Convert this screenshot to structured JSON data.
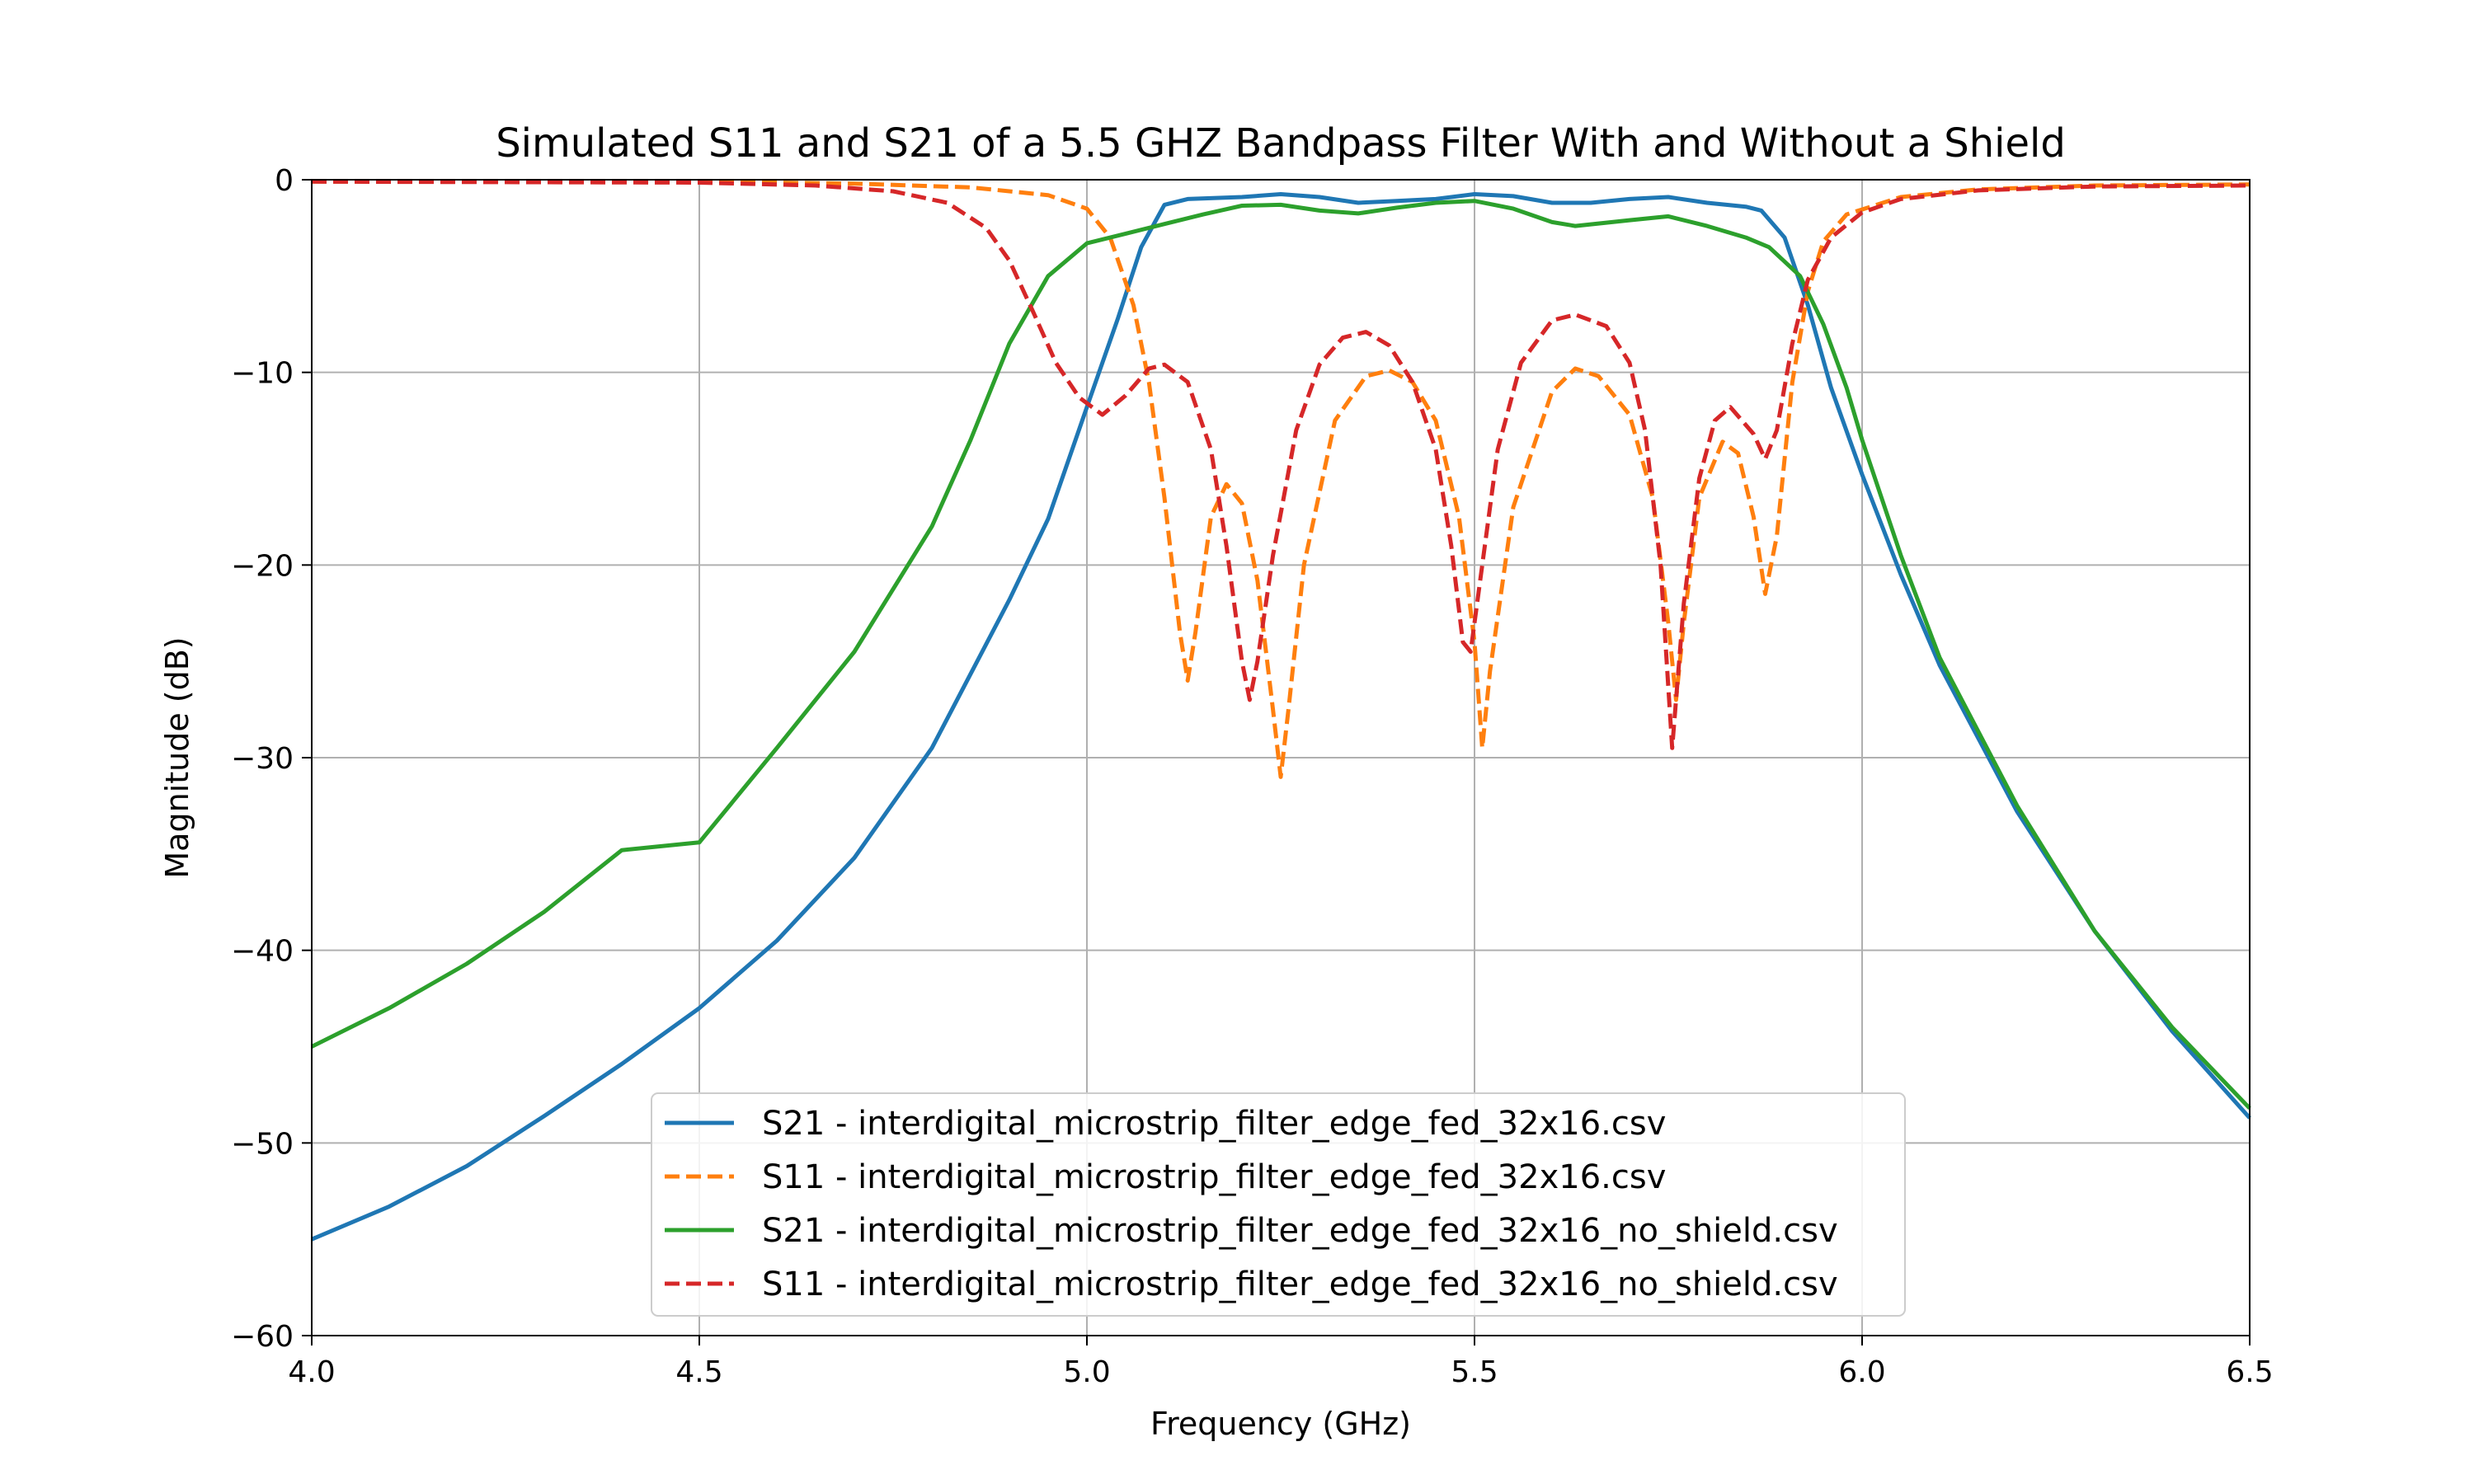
{
  "chart_data": {
    "type": "line",
    "title": "Simulated S11 and S21 of a 5.5 GHZ Bandpass Filter With and Without a Shield",
    "xlabel": "Frequency (GHz)",
    "ylabel": "Magnitude (dB)",
    "xlim": [
      4.0,
      6.5
    ],
    "ylim": [
      -60,
      0
    ],
    "xticks": [
      4.0,
      4.5,
      5.0,
      5.5,
      6.0,
      6.5
    ],
    "xtick_labels": [
      "4.0",
      "4.5",
      "5.0",
      "5.5",
      "6.0",
      "6.5"
    ],
    "yticks": [
      0,
      -10,
      -20,
      -30,
      -40,
      -50,
      -60
    ],
    "ytick_labels": [
      "0",
      "−10",
      "−20",
      "−30",
      "−40",
      "−50",
      "−60"
    ],
    "grid": true,
    "legend_position": "lower-center",
    "series": [
      {
        "name": "S21 - interdigital_microstrip_filter_edge_fed_32x16.csv",
        "color": "#1f77b4",
        "dash": "solid",
        "points": [
          [
            4.0,
            -55
          ],
          [
            4.1,
            -53.3
          ],
          [
            4.2,
            -51.2
          ],
          [
            4.3,
            -48.6
          ],
          [
            4.4,
            -45.9
          ],
          [
            4.5,
            -43
          ],
          [
            4.6,
            -39.5
          ],
          [
            4.7,
            -35.2
          ],
          [
            4.8,
            -29.5
          ],
          [
            4.9,
            -21.8
          ],
          [
            4.95,
            -17.6
          ],
          [
            5.0,
            -11.8
          ],
          [
            5.04,
            -7.2
          ],
          [
            5.07,
            -3.5
          ],
          [
            5.1,
            -1.3
          ],
          [
            5.13,
            -1.0
          ],
          [
            5.2,
            -0.9
          ],
          [
            5.25,
            -0.75
          ],
          [
            5.3,
            -0.9
          ],
          [
            5.35,
            -1.2
          ],
          [
            5.4,
            -1.1
          ],
          [
            5.45,
            -1.0
          ],
          [
            5.5,
            -0.75
          ],
          [
            5.55,
            -0.85
          ],
          [
            5.6,
            -1.2
          ],
          [
            5.65,
            -1.2
          ],
          [
            5.7,
            -1.0
          ],
          [
            5.75,
            -0.9
          ],
          [
            5.8,
            -1.2
          ],
          [
            5.85,
            -1.4
          ],
          [
            5.87,
            -1.6
          ],
          [
            5.9,
            -3.0
          ],
          [
            5.93,
            -6.5
          ],
          [
            5.96,
            -10.8
          ],
          [
            6.0,
            -15.3
          ],
          [
            6.05,
            -20.5
          ],
          [
            6.1,
            -25.2
          ],
          [
            6.2,
            -32.8
          ],
          [
            6.3,
            -39.0
          ],
          [
            6.4,
            -44.2
          ],
          [
            6.5,
            -48.7
          ]
        ]
      },
      {
        "name": "S11 - interdigital_microstrip_filter_edge_fed_32x16.csv",
        "color": "#ff7f0e",
        "dash": "dashed",
        "points": [
          [
            4.0,
            -0.1
          ],
          [
            4.5,
            -0.1
          ],
          [
            4.7,
            -0.2
          ],
          [
            4.85,
            -0.4
          ],
          [
            4.95,
            -0.8
          ],
          [
            5.0,
            -1.5
          ],
          [
            5.03,
            -3.0
          ],
          [
            5.06,
            -6.5
          ],
          [
            5.08,
            -10.5
          ],
          [
            5.1,
            -16.5
          ],
          [
            5.12,
            -23.5
          ],
          [
            5.13,
            -26.0
          ],
          [
            5.14,
            -23.5
          ],
          [
            5.16,
            -17.5
          ],
          [
            5.18,
            -15.8
          ],
          [
            5.2,
            -16.8
          ],
          [
            5.22,
            -20.8
          ],
          [
            5.24,
            -27.5
          ],
          [
            5.25,
            -31.0
          ],
          [
            5.26,
            -27.5
          ],
          [
            5.28,
            -20.0
          ],
          [
            5.32,
            -12.5
          ],
          [
            5.36,
            -10.2
          ],
          [
            5.39,
            -9.9
          ],
          [
            5.42,
            -10.5
          ],
          [
            5.45,
            -12.5
          ],
          [
            5.48,
            -17.5
          ],
          [
            5.5,
            -24.0
          ],
          [
            5.51,
            -29.5
          ],
          [
            5.52,
            -25.5
          ],
          [
            5.55,
            -17.0
          ],
          [
            5.6,
            -11.0
          ],
          [
            5.63,
            -9.8
          ],
          [
            5.66,
            -10.2
          ],
          [
            5.7,
            -12.2
          ],
          [
            5.73,
            -16.5
          ],
          [
            5.75,
            -23.0
          ],
          [
            5.76,
            -27.0
          ],
          [
            5.77,
            -23.0
          ],
          [
            5.79,
            -16.5
          ],
          [
            5.82,
            -13.6
          ],
          [
            5.84,
            -14.2
          ],
          [
            5.86,
            -17.5
          ],
          [
            5.875,
            -21.5
          ],
          [
            5.89,
            -18.5
          ],
          [
            5.91,
            -10.5
          ],
          [
            5.93,
            -5.8
          ],
          [
            5.95,
            -3.2
          ],
          [
            5.98,
            -1.8
          ],
          [
            6.05,
            -0.9
          ],
          [
            6.15,
            -0.5
          ],
          [
            6.3,
            -0.3
          ],
          [
            6.5,
            -0.25
          ]
        ]
      },
      {
        "name": "S21 - interdigital_microstrip_filter_edge_fed_32x16_no_shield.csv",
        "color": "#2ca02c",
        "dash": "solid",
        "points": [
          [
            4.0,
            -45
          ],
          [
            4.1,
            -43.0
          ],
          [
            4.2,
            -40.7
          ],
          [
            4.3,
            -38.0
          ],
          [
            4.4,
            -34.8
          ],
          [
            4.5,
            -34.4
          ],
          [
            4.6,
            -29.5
          ],
          [
            4.7,
            -24.5
          ],
          [
            4.8,
            -18.0
          ],
          [
            4.85,
            -13.5
          ],
          [
            4.9,
            -8.5
          ],
          [
            4.95,
            -5.0
          ],
          [
            5.0,
            -3.3
          ],
          [
            5.05,
            -2.8
          ],
          [
            5.1,
            -2.3
          ],
          [
            5.15,
            -1.8
          ],
          [
            5.2,
            -1.35
          ],
          [
            5.25,
            -1.3
          ],
          [
            5.3,
            -1.6
          ],
          [
            5.35,
            -1.75
          ],
          [
            5.4,
            -1.45
          ],
          [
            5.45,
            -1.2
          ],
          [
            5.5,
            -1.1
          ],
          [
            5.55,
            -1.5
          ],
          [
            5.6,
            -2.2
          ],
          [
            5.63,
            -2.4
          ],
          [
            5.7,
            -2.1
          ],
          [
            5.75,
            -1.9
          ],
          [
            5.8,
            -2.4
          ],
          [
            5.85,
            -3.0
          ],
          [
            5.88,
            -3.5
          ],
          [
            5.92,
            -5.0
          ],
          [
            5.95,
            -7.5
          ],
          [
            5.98,
            -10.8
          ],
          [
            6.0,
            -13.5
          ],
          [
            6.05,
            -19.5
          ],
          [
            6.1,
            -24.8
          ],
          [
            6.2,
            -32.5
          ],
          [
            6.3,
            -39.0
          ],
          [
            6.4,
            -44.0
          ],
          [
            6.5,
            -48.2
          ]
        ]
      },
      {
        "name": "S11 - interdigital_microstrip_filter_edge_fed_32x16_no_shield.csv",
        "color": "#d62728",
        "dash": "dashed",
        "points": [
          [
            4.0,
            -0.1
          ],
          [
            4.5,
            -0.15
          ],
          [
            4.65,
            -0.3
          ],
          [
            4.75,
            -0.6
          ],
          [
            4.82,
            -1.2
          ],
          [
            4.87,
            -2.5
          ],
          [
            4.9,
            -4.2
          ],
          [
            4.93,
            -6.8
          ],
          [
            4.96,
            -9.5
          ],
          [
            4.99,
            -11.3
          ],
          [
            5.02,
            -12.2
          ],
          [
            5.05,
            -11.2
          ],
          [
            5.08,
            -9.8
          ],
          [
            5.1,
            -9.6
          ],
          [
            5.13,
            -10.5
          ],
          [
            5.16,
            -14.0
          ],
          [
            5.18,
            -19.0
          ],
          [
            5.2,
            -25.0
          ],
          [
            5.21,
            -27.0
          ],
          [
            5.22,
            -25.0
          ],
          [
            5.24,
            -19.5
          ],
          [
            5.27,
            -13.0
          ],
          [
            5.3,
            -9.6
          ],
          [
            5.33,
            -8.2
          ],
          [
            5.36,
            -7.9
          ],
          [
            5.39,
            -8.6
          ],
          [
            5.42,
            -10.5
          ],
          [
            5.45,
            -14.0
          ],
          [
            5.47,
            -19.0
          ],
          [
            5.485,
            -24.0
          ],
          [
            5.495,
            -24.5
          ],
          [
            5.51,
            -20.0
          ],
          [
            5.53,
            -14.0
          ],
          [
            5.56,
            -9.5
          ],
          [
            5.6,
            -7.3
          ],
          [
            5.63,
            -7.0
          ],
          [
            5.67,
            -7.6
          ],
          [
            5.7,
            -9.5
          ],
          [
            5.72,
            -13.0
          ],
          [
            5.74,
            -20.0
          ],
          [
            5.755,
            -29.5
          ],
          [
            5.77,
            -22.0
          ],
          [
            5.79,
            -15.5
          ],
          [
            5.81,
            -12.5
          ],
          [
            5.83,
            -11.8
          ],
          [
            5.86,
            -13.2
          ],
          [
            5.875,
            -14.5
          ],
          [
            5.89,
            -13.0
          ],
          [
            5.91,
            -8.5
          ],
          [
            5.93,
            -5.2
          ],
          [
            5.96,
            -3.0
          ],
          [
            6.0,
            -1.7
          ],
          [
            6.05,
            -1.0
          ],
          [
            6.15,
            -0.55
          ],
          [
            6.3,
            -0.35
          ],
          [
            6.5,
            -0.3
          ]
        ]
      }
    ]
  }
}
